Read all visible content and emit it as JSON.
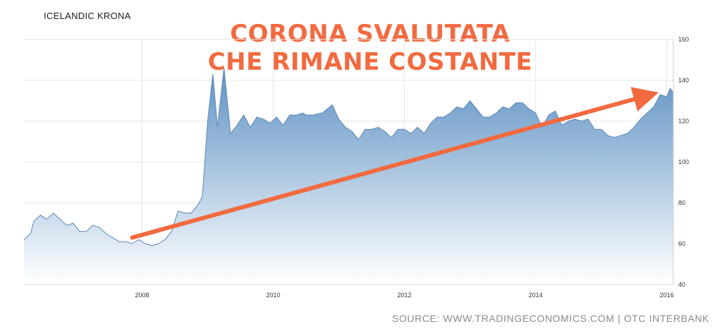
{
  "chart_title": "ICELANDIC KRONA",
  "headline": {
    "line1": "CORONA SVALUTATA",
    "line2": "CHE RIMANE COSTANTE"
  },
  "source": "SOURCE: WWW.TRADINGECONOMICS.COM | OTC INTERBANK",
  "colors": {
    "area_top": "#5f92c4",
    "area_bottom": "#ffffff",
    "line": "#5b86b8",
    "grid": "#e6e6e6",
    "arrow": "#f26a3f"
  },
  "chart_data": {
    "type": "area",
    "title": "ICELANDIC KRONA",
    "xlabel": "",
    "ylabel": "",
    "xlim": [
      2006.2,
      2016.1
    ],
    "ylim": [
      40,
      160
    ],
    "x_ticks": [
      2008,
      2010,
      2012,
      2014,
      2016
    ],
    "y_ticks": [
      40,
      60,
      80,
      100,
      120,
      140,
      160
    ],
    "grid": true,
    "series": [
      {
        "x": [
          2006.2,
          2006.3,
          2006.35,
          2006.45,
          2006.55,
          2006.65,
          2006.75,
          2006.85,
          2006.95,
          2007.05,
          2007.15,
          2007.25,
          2007.35,
          2007.45,
          2007.55,
          2007.65,
          2007.75,
          2007.85,
          2007.95,
          2008.05,
          2008.15,
          2008.25,
          2008.35,
          2008.45,
          2008.55,
          2008.65,
          2008.75,
          2008.85,
          2008.92,
          2009.0,
          2009.08,
          2009.15,
          2009.25,
          2009.35,
          2009.45,
          2009.55,
          2009.65,
          2009.75,
          2009.85,
          2009.95,
          2010.05,
          2010.15,
          2010.25,
          2010.35,
          2010.45,
          2010.5,
          2010.6,
          2010.75,
          2010.9,
          2011.0,
          2011.1,
          2011.2,
          2011.3,
          2011.4,
          2011.5,
          2011.6,
          2011.7,
          2011.8,
          2011.9,
          2012.0,
          2012.1,
          2012.2,
          2012.3,
          2012.4,
          2012.5,
          2012.6,
          2012.7,
          2012.8,
          2012.9,
          2013.0,
          2013.1,
          2013.2,
          2013.3,
          2013.4,
          2013.5,
          2013.6,
          2013.7,
          2013.8,
          2013.9,
          2014.0,
          2014.1,
          2014.2,
          2014.3,
          2014.4,
          2014.5,
          2014.6,
          2014.7,
          2014.8,
          2014.9,
          2015.0,
          2015.1,
          2015.2,
          2015.3,
          2015.4,
          2015.5,
          2015.6,
          2015.7,
          2015.8,
          2015.9,
          2016.0,
          2016.05,
          2016.1
        ],
        "y": [
          62,
          65,
          71,
          74,
          72,
          75,
          72,
          69,
          70,
          66,
          66,
          69,
          68,
          65,
          63,
          61,
          61,
          60,
          62,
          60,
          59,
          60,
          62,
          66,
          76,
          75,
          75,
          79,
          83,
          120,
          143,
          117,
          146,
          114,
          118,
          123,
          117,
          122,
          121,
          119,
          122,
          118,
          123,
          123,
          124,
          123,
          123,
          124,
          128,
          121,
          117,
          115,
          111,
          116,
          116,
          117,
          115,
          112,
          116,
          116,
          114,
          117,
          114,
          119,
          122,
          122,
          124,
          127,
          126,
          130,
          126,
          122,
          122,
          124,
          127,
          126,
          129,
          129,
          126,
          124,
          117,
          123,
          125,
          118,
          120,
          121,
          120,
          121,
          116,
          116,
          113,
          112,
          113,
          114,
          117,
          121,
          124,
          127,
          133,
          132,
          136,
          134
        ],
        "note": ""
      }
    ]
  }
}
